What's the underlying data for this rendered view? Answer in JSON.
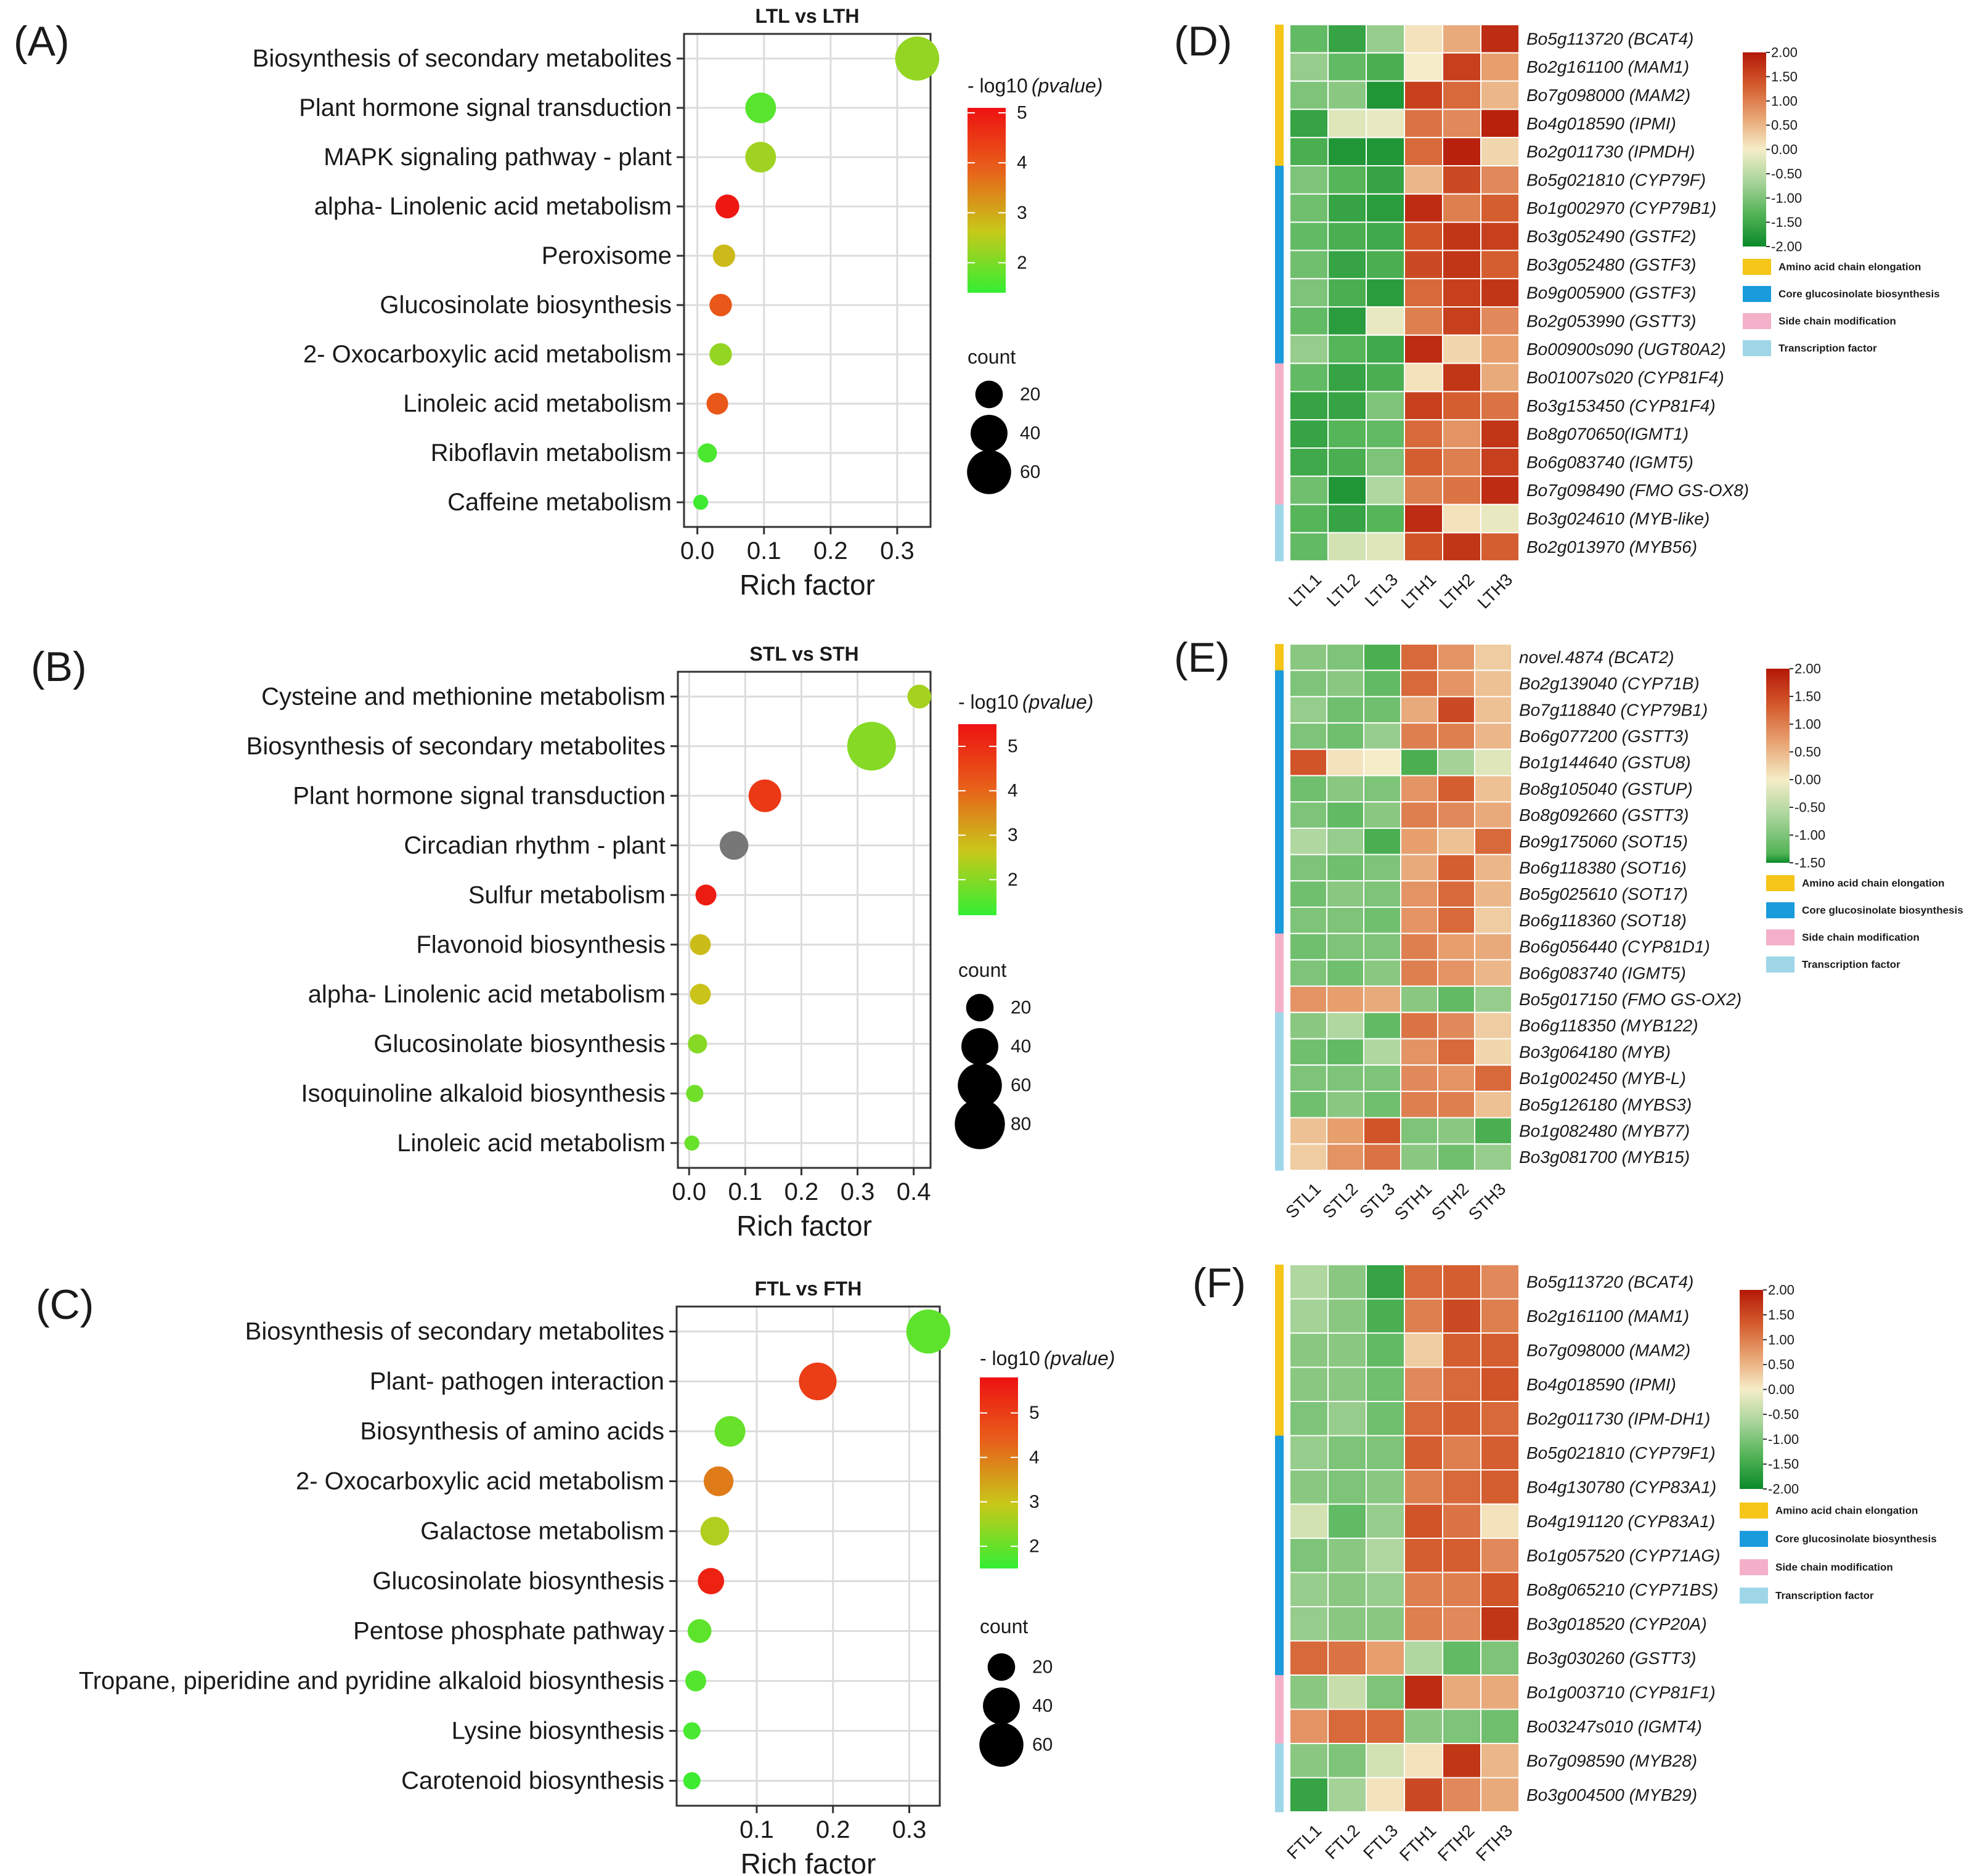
{
  "figure": {
    "panel_letters": [
      "(A)",
      "(B)",
      "(C)",
      "(D)",
      "(E)",
      "(F)"
    ]
  },
  "chart_data": [
    {
      "type": "scatter",
      "panel": "(A)",
      "title": "LTL vs LTH",
      "xlabel": "Rich factor",
      "xlim": [
        -0.02,
        0.35
      ],
      "xticks": [
        0.0,
        0.1,
        0.2,
        0.3
      ],
      "xtick_labels": [
        "0.0",
        "0.1",
        "0.2",
        "0.3"
      ],
      "pathways": [
        "Biosynthesis of secondary metabolites",
        "Plant hormone signal transduction",
        "MAPK signaling pathway -  plant",
        "alpha- Linolenic acid metabolism",
        "Peroxisome",
        "Glucosinolate biosynthesis",
        "2- Oxocarboxylic acid metabolism",
        "Linoleic acid metabolism",
        "Riboflavin metabolism",
        "Caffeine metabolism"
      ],
      "rich_factor": [
        0.33,
        0.095,
        0.095,
        0.045,
        0.04,
        0.035,
        0.035,
        0.03,
        0.015,
        0.005
      ],
      "neg_log10_p": [
        2.2,
        1.7,
        2.3,
        5.0,
        2.8,
        4.0,
        2.2,
        4.0,
        1.6,
        1.5
      ],
      "count": [
        60,
        26,
        26,
        14,
        12,
        12,
        12,
        11,
        8,
        4
      ],
      "color_legend": {
        "title": "- log10",
        "title_suffix": "(pvalue)",
        "min": 1.4,
        "max": 5.1,
        "ticks": [
          2,
          3,
          4,
          5
        ],
        "tick_labels": [
          "2",
          "3",
          "4",
          "5"
        ]
      },
      "size_legend": {
        "title": "count",
        "values": [
          20,
          40,
          60
        ],
        "labels": [
          "20",
          "40",
          "60"
        ]
      },
      "color_scale": [
        "#33ee33",
        "#c8c81a",
        "#e8601a",
        "#ee1111"
      ]
    },
    {
      "type": "scatter",
      "panel": "(B)",
      "title": "STL vs STH",
      "xlabel": "Rich factor",
      "xlim": [
        -0.02,
        0.43
      ],
      "xticks": [
        0.0,
        0.1,
        0.2,
        0.3,
        0.4
      ],
      "xtick_labels": [
        "0.0",
        "0.1",
        "0.2",
        "0.3",
        "0.4"
      ],
      "pathways": [
        "Cysteine and methionine metabolism",
        "Biosynthesis of secondary metabolites",
        "Plant hormone signal transduction",
        "Circadian rhythm -  plant",
        "Sulfur metabolism",
        "Flavonoid biosynthesis",
        "alpha- Linolenic acid metabolism",
        "Glucosinolate biosynthesis",
        "Isoquinoline alkaloid biosynthesis",
        "Linoleic acid metabolism"
      ],
      "rich_factor": [
        0.41,
        0.325,
        0.135,
        0.08,
        0.03,
        0.02,
        0.02,
        0.015,
        0.01,
        0.005
      ],
      "neg_log10_p": [
        2.3,
        2.0,
        4.8,
        null,
        5.3,
        2.8,
        2.7,
        2.0,
        1.8,
        1.7
      ],
      "count": [
        14,
        75,
        30,
        22,
        10,
        10,
        10,
        8,
        6,
        4
      ],
      "color_legend": {
        "title": "- log10",
        "title_suffix": "(pvalue)",
        "min": 1.2,
        "max": 5.5,
        "ticks": [
          2,
          3,
          4,
          5
        ],
        "tick_labels": [
          "2",
          "3",
          "4",
          "5"
        ]
      },
      "size_legend": {
        "title": "count",
        "values": [
          20,
          40,
          60,
          80
        ],
        "labels": [
          "20",
          "40",
          "60",
          "80"
        ]
      },
      "color_scale": [
        "#33ee33",
        "#c8c81a",
        "#e8601a",
        "#ee1111"
      ],
      "na_color": "#777777"
    },
    {
      "type": "scatter",
      "panel": "(C)",
      "title": "FTL vs FTH",
      "xlabel": "Rich factor",
      "xlim": [
        -0.005,
        0.34
      ],
      "xticks": [
        0.1,
        0.2,
        0.3
      ],
      "xtick_labels": [
        "0.1",
        "0.2",
        "0.3"
      ],
      "pathways": [
        "Biosynthesis of secondary metabolites",
        "Plant- pathogen interaction",
        "Biosynthesis of amino acids",
        "2- Oxocarboxylic acid metabolism",
        "Galactose metabolism",
        "Glucosinolate biosynthesis",
        "Pentose phosphate pathway",
        "Tropane, piperidine and pyridine alkaloid biosynthesis",
        "Lysine biosynthesis",
        "Carotenoid biosynthesis"
      ],
      "rich_factor": [
        0.325,
        0.18,
        0.065,
        0.05,
        0.045,
        0.04,
        0.025,
        0.02,
        0.015,
        0.015
      ],
      "neg_log10_p": [
        1.9,
        5.0,
        2.0,
        4.0,
        2.7,
        5.5,
        1.9,
        1.8,
        1.7,
        1.6
      ],
      "count": [
        60,
        42,
        26,
        24,
        22,
        18,
        14,
        10,
        6,
        6
      ],
      "color_legend": {
        "title": "- log10",
        "title_suffix": "(pvalue)",
        "min": 1.5,
        "max": 5.8,
        "ticks": [
          2,
          3,
          4,
          5
        ],
        "tick_labels": [
          "2",
          "3",
          "4",
          "5"
        ]
      },
      "size_legend": {
        "title": "count",
        "values": [
          20,
          40,
          60
        ],
        "labels": [
          "20",
          "40",
          "60"
        ]
      },
      "color_scale": [
        "#33ee33",
        "#c8c81a",
        "#e8601a",
        "#ee1111"
      ]
    },
    {
      "type": "heatmap",
      "panel": "(D)",
      "columns": [
        "LTL1",
        "LTL2",
        "LTL3",
        "LTH1",
        "LTH2",
        "LTH3"
      ],
      "rows": [
        "Bo5g113720 (BCAT4)",
        "Bo2g161100 (MAM1)",
        "Bo7g098000 (MAM2)",
        "Bo4g018590 (IPMI)",
        "Bo2g011730 (IPMDH)",
        "Bo5g021810 (CYP79F)",
        "Bo1g002970 (CYP79B1)",
        "Bo3g052490 (GSTF2)",
        "Bo3g052480 (GSTF3)",
        "Bo9g005900 (GSTF3)",
        "Bo2g053990 (GSTT3)",
        "Bo00900s090 (UGT80A2)",
        "Bo01007s020 (CYP81F4)",
        "Bo3g153450 (CYP81F4)",
        "Bo8g070650(IGMT1)",
        "Bo6g083740 (IGMT5)",
        "Bo7g098490 (FMO GS-OX8)",
        "Bo3g024610 (MYB-like)",
        "Bo2g013970 (MYB56)"
      ],
      "row_groups": [
        "Amino acid chain elongation",
        "Amino acid chain elongation",
        "Amino acid chain elongation",
        "Amino acid chain elongation",
        "Amino acid chain elongation",
        "Core glucosinolate biosynthesis",
        "Core glucosinolate biosynthesis",
        "Core glucosinolate biosynthesis",
        "Core glucosinolate biosynthesis",
        "Core glucosinolate biosynthesis",
        "Core glucosinolate biosynthesis",
        "Core glucosinolate biosynthesis",
        "Side chain modification",
        "Side chain modification",
        "Side chain modification",
        "Side chain modification",
        "Side chain modification",
        "Transcription factor",
        "Transcription factor"
      ],
      "values": [
        [
          -1.2,
          -1.6,
          -0.8,
          0.1,
          0.6,
          1.8
        ],
        [
          -0.8,
          -1.2,
          -1.4,
          0.0,
          1.6,
          0.7
        ],
        [
          -1.0,
          -0.9,
          -1.8,
          1.6,
          1.2,
          0.5
        ],
        [
          -1.6,
          -0.2,
          -0.1,
          1.1,
          0.9,
          1.9
        ],
        [
          -1.4,
          -1.8,
          -1.8,
          1.2,
          1.9,
          0.2
        ],
        [
          -1.0,
          -1.3,
          -1.6,
          0.5,
          1.5,
          0.9
        ],
        [
          -1.1,
          -1.6,
          -1.7,
          1.8,
          1.0,
          1.3
        ],
        [
          -1.2,
          -1.4,
          -1.5,
          1.4,
          1.7,
          1.6
        ],
        [
          -1.1,
          -1.6,
          -1.4,
          1.5,
          1.7,
          1.3
        ],
        [
          -1.0,
          -1.4,
          -1.7,
          1.2,
          1.6,
          1.7
        ],
        [
          -1.2,
          -1.7,
          -0.1,
          1.0,
          1.6,
          0.9
        ],
        [
          -0.8,
          -1.3,
          -1.5,
          1.8,
          0.2,
          0.7
        ],
        [
          -1.2,
          -1.6,
          -1.4,
          0.1,
          1.7,
          0.6
        ],
        [
          -1.6,
          -1.6,
          -1.0,
          1.6,
          1.3,
          1.1
        ],
        [
          -1.6,
          -1.3,
          -1.2,
          1.2,
          0.8,
          1.7
        ],
        [
          -1.5,
          -1.4,
          -1.0,
          1.3,
          1.0,
          1.6
        ],
        [
          -1.1,
          -1.8,
          -0.6,
          1.0,
          1.1,
          1.8
        ],
        [
          -1.3,
          -1.6,
          -1.3,
          1.8,
          0.1,
          -0.1
        ],
        [
          -1.2,
          -0.3,
          -0.2,
          1.4,
          1.7,
          1.3
        ]
      ],
      "color_range": [
        -2.0,
        2.0
      ],
      "color_ticks": [
        "2.00",
        "1.50",
        "1.00",
        "0.50",
        "0.00",
        "-0.50",
        "-1.00",
        "-1.50",
        "-2.00"
      ],
      "group_legend": [
        {
          "label": "Amino acid chain elongation",
          "color": "#f5c518"
        },
        {
          "label": "Core glucosinolate biosynthesis",
          "color": "#1a9bdc"
        },
        {
          "label": "Side chain modification",
          "color": "#f4b0c8"
        },
        {
          "label": "Transcription factor",
          "color": "#9ed6e8"
        }
      ]
    },
    {
      "type": "heatmap",
      "panel": "(E)",
      "columns": [
        "STL1",
        "STL2",
        "STL3",
        "STH1",
        "STH2",
        "STH3"
      ],
      "rows": [
        "novel.4874 (BCAT2)",
        "Bo2g139040 (CYP71B)",
        "Bo7g118840 (CYP79B1)",
        "Bo6g077200 (GSTT3)",
        "Bo1g144640 (GSTU8)",
        "Bo8g105040 (GSTUP)",
        "Bo8g092660 (GSTT3)",
        "Bo9g175060 (SOT15)",
        "Bo6g118380 (SOT16)",
        "Bo5g025610 (SOT17)",
        "Bo6g118360 (SOT18)",
        "Bo6g056440 (CYP81D1)",
        "Bo6g083740 (IGMT5)",
        "Bo5g017150 (FMO GS-OX2)",
        "Bo6g118350 (MYB122)",
        "Bo3g064180 (MYB)",
        "Bo1g002450 (MYB-L)",
        "Bo5g126180 (MYBS3)",
        "Bo1g082480 (MYB77)",
        "Bo3g081700 (MYB15)"
      ],
      "row_groups": [
        "Amino acid chain elongation",
        "Core glucosinolate biosynthesis",
        "Core glucosinolate biosynthesis",
        "Core glucosinolate biosynthesis",
        "Core glucosinolate biosynthesis",
        "Core glucosinolate biosynthesis",
        "Core glucosinolate biosynthesis",
        "Core glucosinolate biosynthesis",
        "Core glucosinolate biosynthesis",
        "Core glucosinolate biosynthesis",
        "Core glucosinolate biosynthesis",
        "Side chain modification",
        "Side chain modification",
        "Side chain modification",
        "Transcription factor",
        "Transcription factor",
        "Transcription factor",
        "Transcription factor",
        "Transcription factor",
        "Transcription factor"
      ],
      "values": [
        [
          -0.9,
          -1.0,
          -1.4,
          1.2,
          0.8,
          0.3
        ],
        [
          -1.0,
          -0.9,
          -1.2,
          1.2,
          0.8,
          0.4
        ],
        [
          -0.8,
          -1.1,
          -1.1,
          0.6,
          1.5,
          0.4
        ],
        [
          -1.0,
          -1.1,
          -0.8,
          1.0,
          1.0,
          0.5
        ],
        [
          1.4,
          0.1,
          0.0,
          -1.4,
          -0.7,
          -0.2
        ],
        [
          -1.1,
          -0.9,
          -1.0,
          0.8,
          1.3,
          0.4
        ],
        [
          -1.0,
          -1.2,
          -0.9,
          1.0,
          0.9,
          0.6
        ],
        [
          -0.6,
          -0.8,
          -1.4,
          0.7,
          0.4,
          1.2
        ],
        [
          -1.0,
          -1.1,
          -1.0,
          0.6,
          1.3,
          0.5
        ],
        [
          -1.1,
          -0.9,
          -1.0,
          0.8,
          1.2,
          0.5
        ],
        [
          -1.0,
          -1.0,
          -1.1,
          0.8,
          1.2,
          0.3
        ],
        [
          -1.1,
          -1.0,
          -1.0,
          1.0,
          0.7,
          0.6
        ],
        [
          -1.0,
          -1.1,
          -0.9,
          1.0,
          0.8,
          0.5
        ],
        [
          0.8,
          0.7,
          0.6,
          -0.9,
          -1.2,
          -0.8
        ],
        [
          -0.9,
          -0.6,
          -1.2,
          1.1,
          0.9,
          0.3
        ],
        [
          -1.1,
          -1.2,
          -0.6,
          0.8,
          1.2,
          0.2
        ],
        [
          -1.0,
          -1.0,
          -1.0,
          0.9,
          0.8,
          1.2
        ],
        [
          -1.1,
          -0.9,
          -1.1,
          1.0,
          1.0,
          0.4
        ],
        [
          0.4,
          0.7,
          1.4,
          -1.0,
          -0.9,
          -1.4
        ],
        [
          0.3,
          0.8,
          1.1,
          -0.9,
          -1.1,
          -0.8
        ]
      ],
      "color_range": [
        -1.5,
        2.0
      ],
      "color_ticks": [
        "2.00",
        "1.50",
        "1.00",
        "0.50",
        "0.00",
        "-0.50",
        "-1.00",
        "-1.50"
      ],
      "group_legend": [
        {
          "label": "Amino acid chain elongation",
          "color": "#f5c518"
        },
        {
          "label": "Core glucosinolate biosynthesis",
          "color": "#1a9bdc"
        },
        {
          "label": "Side chain modification",
          "color": "#f4b0c8"
        },
        {
          "label": "Transcription factor",
          "color": "#9ed6e8"
        }
      ]
    },
    {
      "type": "heatmap",
      "panel": "(F)",
      "columns": [
        "FTL1",
        "FTL2",
        "FTL3",
        "FTH1",
        "FTH2",
        "FTH3"
      ],
      "rows": [
        "Bo5g113720 (BCAT4)",
        "Bo2g161100 (MAM1)",
        "Bo7g098000 (MAM2)",
        "Bo4g018590 (IPMI)",
        "Bo2g011730 (IPM-DH1)",
        "Bo5g021810 (CYP79F1)",
        "Bo4g130780 (CYP83A1)",
        "Bo4g191120 (CYP83A1)",
        "Bo1g057520 (CYP71AG)",
        "Bo8g065210 (CYP71BS)",
        "Bo3g018520 (CYP20A)",
        "Bo3g030260 (GSTT3)",
        "Bo1g003710 (CYP81F1)",
        "Bo03247s010 (IGMT4)",
        "Bo7g098590 (MYB28)",
        "Bo3g004500 (MYB29)"
      ],
      "row_groups": [
        "Amino acid chain elongation",
        "Amino acid chain elongation",
        "Amino acid chain elongation",
        "Amino acid chain elongation",
        "Amino acid chain elongation",
        "Core glucosinolate biosynthesis",
        "Core glucosinolate biosynthesis",
        "Core glucosinolate biosynthesis",
        "Core glucosinolate biosynthesis",
        "Core glucosinolate biosynthesis",
        "Core glucosinolate biosynthesis",
        "Core glucosinolate biosynthesis",
        "Side chain modification",
        "Side chain modification",
        "Transcription factor",
        "Transcription factor"
      ],
      "values": [
        [
          -0.6,
          -0.9,
          -1.6,
          1.2,
          1.3,
          0.9
        ],
        [
          -0.7,
          -0.9,
          -1.4,
          1.0,
          1.5,
          1.0
        ],
        [
          -0.9,
          -0.9,
          -1.2,
          0.3,
          1.3,
          1.3
        ],
        [
          -0.9,
          -0.9,
          -1.1,
          0.9,
          1.2,
          1.4
        ],
        [
          -1.0,
          -0.8,
          -1.1,
          1.2,
          1.3,
          1.2
        ],
        [
          -0.8,
          -1.0,
          -1.0,
          1.3,
          1.0,
          1.3
        ],
        [
          -0.9,
          -1.0,
          -0.9,
          1.0,
          1.2,
          1.3
        ],
        [
          -0.3,
          -1.2,
          -0.8,
          1.4,
          1.1,
          0.1
        ],
        [
          -1.0,
          -0.9,
          -0.6,
          1.3,
          1.3,
          0.9
        ],
        [
          -0.8,
          -0.9,
          -0.8,
          1.0,
          1.0,
          1.4
        ],
        [
          -0.8,
          -0.9,
          -0.9,
          1.0,
          0.9,
          1.7
        ],
        [
          1.2,
          1.1,
          0.7,
          -0.6,
          -1.2,
          -1.0
        ],
        [
          -0.9,
          -0.4,
          -1.0,
          1.8,
          0.6,
          0.6
        ],
        [
          0.8,
          1.2,
          1.2,
          -0.9,
          -1.0,
          -1.1
        ],
        [
          -0.9,
          -1.0,
          -0.3,
          0.1,
          1.7,
          0.5
        ],
        [
          -1.6,
          -0.7,
          0.1,
          1.5,
          0.9,
          0.6
        ]
      ],
      "color_range": [
        -2.0,
        2.0
      ],
      "color_ticks": [
        "2.00",
        "1.50",
        "1.00",
        "0.50",
        "0.00",
        "-0.50",
        "-1.00",
        "-1.50",
        "-2.00"
      ],
      "group_legend": [
        {
          "label": "Amino acid chain elongation",
          "color": "#f5c518"
        },
        {
          "label": "Core glucosinolate biosynthesis",
          "color": "#1a9bdc"
        },
        {
          "label": "Side chain modification",
          "color": "#f4b0c8"
        },
        {
          "label": "Transcription factor",
          "color": "#9ed6e8"
        }
      ]
    }
  ]
}
